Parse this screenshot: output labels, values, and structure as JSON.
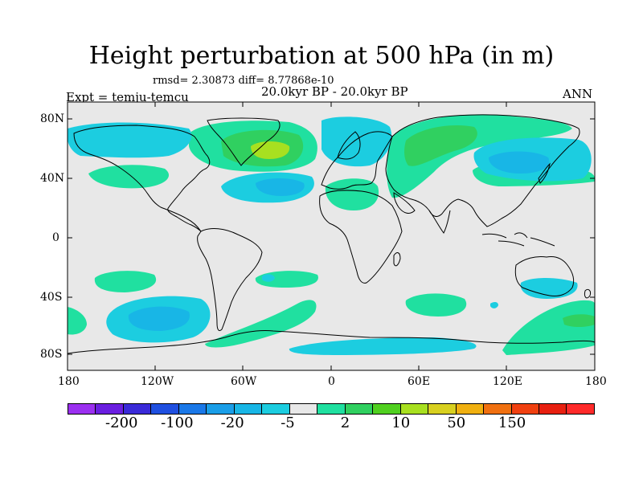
{
  "header": {
    "title": "Height perturbation at 500 hPa (in m)",
    "stats": "rmsd= 2.30873  diff= 8.77868e-10",
    "period": "20.0kyr BP - 20.0kyr BP",
    "experiment": "Expt = temju-temcu",
    "season": "ANN"
  },
  "axes": {
    "lat_labels": [
      "80N",
      "40N",
      "0",
      "40S",
      "80S"
    ],
    "lon_labels": [
      "180",
      "120W",
      "60W",
      "0",
      "60E",
      "120E",
      "180"
    ]
  },
  "colorbar": {
    "colors": [
      "#9b30f0",
      "#6a1ee0",
      "#3a2ad8",
      "#1f4fe0",
      "#1a78e8",
      "#1a9ee8",
      "#18b6e6",
      "#1ccde0",
      "#e8e8e8",
      "#20e0a0",
      "#30d060",
      "#50d020",
      "#a8e020",
      "#d8d020",
      "#f0b010",
      "#f07010",
      "#f04010",
      "#e82010",
      "#ff2a2a"
    ],
    "labels": [
      "-200",
      "-100",
      "-20",
      "-5",
      "2",
      "10",
      "50",
      "150"
    ],
    "label_positions": [
      "boundary-2",
      "boundary-4",
      "boundary-6",
      "boundary-8",
      "boundary-10",
      "boundary-12",
      "boundary-14",
      "boundary-16"
    ]
  }
}
